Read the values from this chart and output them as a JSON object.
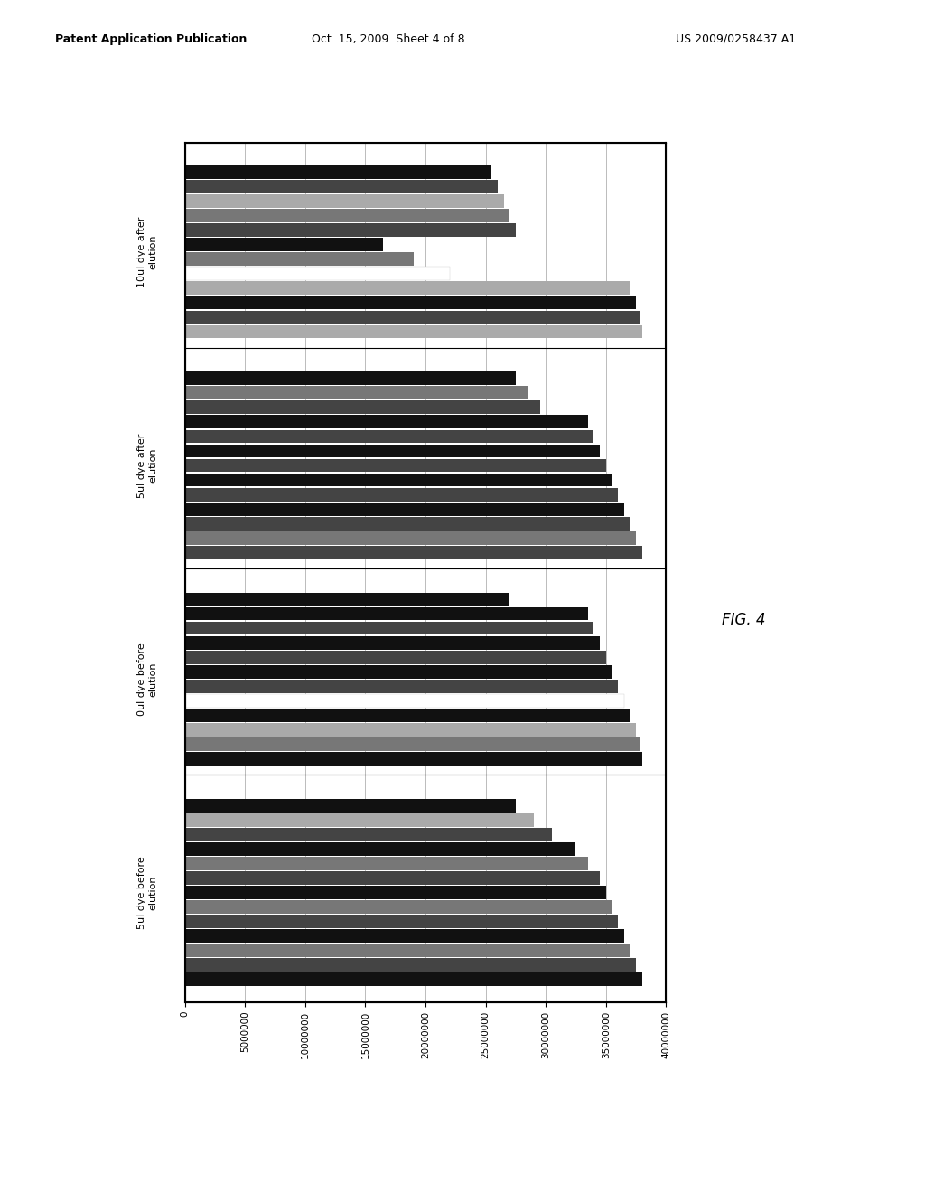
{
  "groups": [
    {
      "label": "5ul dye before\nelution",
      "bars": [
        {
          "value": 38000000,
          "color": "#111111"
        },
        {
          "value": 37500000,
          "color": "#444444"
        },
        {
          "value": 37000000,
          "color": "#777777"
        },
        {
          "value": 36500000,
          "color": "#111111"
        },
        {
          "value": 36000000,
          "color": "#444444"
        },
        {
          "value": 35500000,
          "color": "#777777"
        },
        {
          "value": 35000000,
          "color": "#111111"
        },
        {
          "value": 34500000,
          "color": "#444444"
        },
        {
          "value": 33500000,
          "color": "#777777"
        },
        {
          "value": 32500000,
          "color": "#111111"
        },
        {
          "value": 30500000,
          "color": "#444444"
        },
        {
          "value": 29000000,
          "color": "#aaaaaa"
        },
        {
          "value": 27500000,
          "color": "#111111"
        }
      ]
    },
    {
      "label": "0ul dye before\nelution",
      "bars": [
        {
          "value": 38000000,
          "color": "#111111"
        },
        {
          "value": 37800000,
          "color": "#777777"
        },
        {
          "value": 37500000,
          "color": "#aaaaaa"
        },
        {
          "value": 37000000,
          "color": "#111111"
        },
        {
          "value": 36500000,
          "color": "#ffffff"
        },
        {
          "value": 36000000,
          "color": "#444444"
        },
        {
          "value": 35500000,
          "color": "#111111"
        },
        {
          "value": 35000000,
          "color": "#444444"
        },
        {
          "value": 34500000,
          "color": "#111111"
        },
        {
          "value": 34000000,
          "color": "#444444"
        },
        {
          "value": 33500000,
          "color": "#111111"
        },
        {
          "value": 27000000,
          "color": "#111111"
        }
      ]
    },
    {
      "label": "5ul dye after\nelution",
      "bars": [
        {
          "value": 38000000,
          "color": "#444444"
        },
        {
          "value": 37500000,
          "color": "#777777"
        },
        {
          "value": 37000000,
          "color": "#444444"
        },
        {
          "value": 36500000,
          "color": "#111111"
        },
        {
          "value": 36000000,
          "color": "#444444"
        },
        {
          "value": 35500000,
          "color": "#111111"
        },
        {
          "value": 35000000,
          "color": "#444444"
        },
        {
          "value": 34500000,
          "color": "#111111"
        },
        {
          "value": 34000000,
          "color": "#444444"
        },
        {
          "value": 33500000,
          "color": "#111111"
        },
        {
          "value": 29500000,
          "color": "#444444"
        },
        {
          "value": 28500000,
          "color": "#777777"
        },
        {
          "value": 27500000,
          "color": "#111111"
        }
      ]
    },
    {
      "label": "10ul dye after\nelution",
      "bars": [
        {
          "value": 38000000,
          "color": "#aaaaaa"
        },
        {
          "value": 37800000,
          "color": "#444444"
        },
        {
          "value": 37500000,
          "color": "#111111"
        },
        {
          "value": 37000000,
          "color": "#aaaaaa"
        },
        {
          "value": 22000000,
          "color": "#ffffff"
        },
        {
          "value": 19000000,
          "color": "#777777"
        },
        {
          "value": 16500000,
          "color": "#111111"
        },
        {
          "value": 27500000,
          "color": "#444444"
        },
        {
          "value": 27000000,
          "color": "#777777"
        },
        {
          "value": 26500000,
          "color": "#aaaaaa"
        },
        {
          "value": 26000000,
          "color": "#444444"
        },
        {
          "value": 25500000,
          "color": "#111111"
        }
      ]
    }
  ],
  "xlim": [
    0,
    40000000
  ],
  "xticks": [
    0,
    5000000,
    10000000,
    15000000,
    20000000,
    25000000,
    30000000,
    35000000,
    40000000
  ],
  "xtick_labels": [
    "0",
    "5000000",
    "10000000",
    "15000000",
    "20000000",
    "25000000",
    "30000000",
    "35000000",
    "40000000"
  ],
  "background_color": "#ffffff",
  "plot_bg": "#ffffff",
  "fig_label": "FIG. 4",
  "header_left": "Patent Application Publication",
  "header_mid": "Oct. 15, 2009  Sheet 4 of 8",
  "header_right": "US 2009/0258437 A1"
}
